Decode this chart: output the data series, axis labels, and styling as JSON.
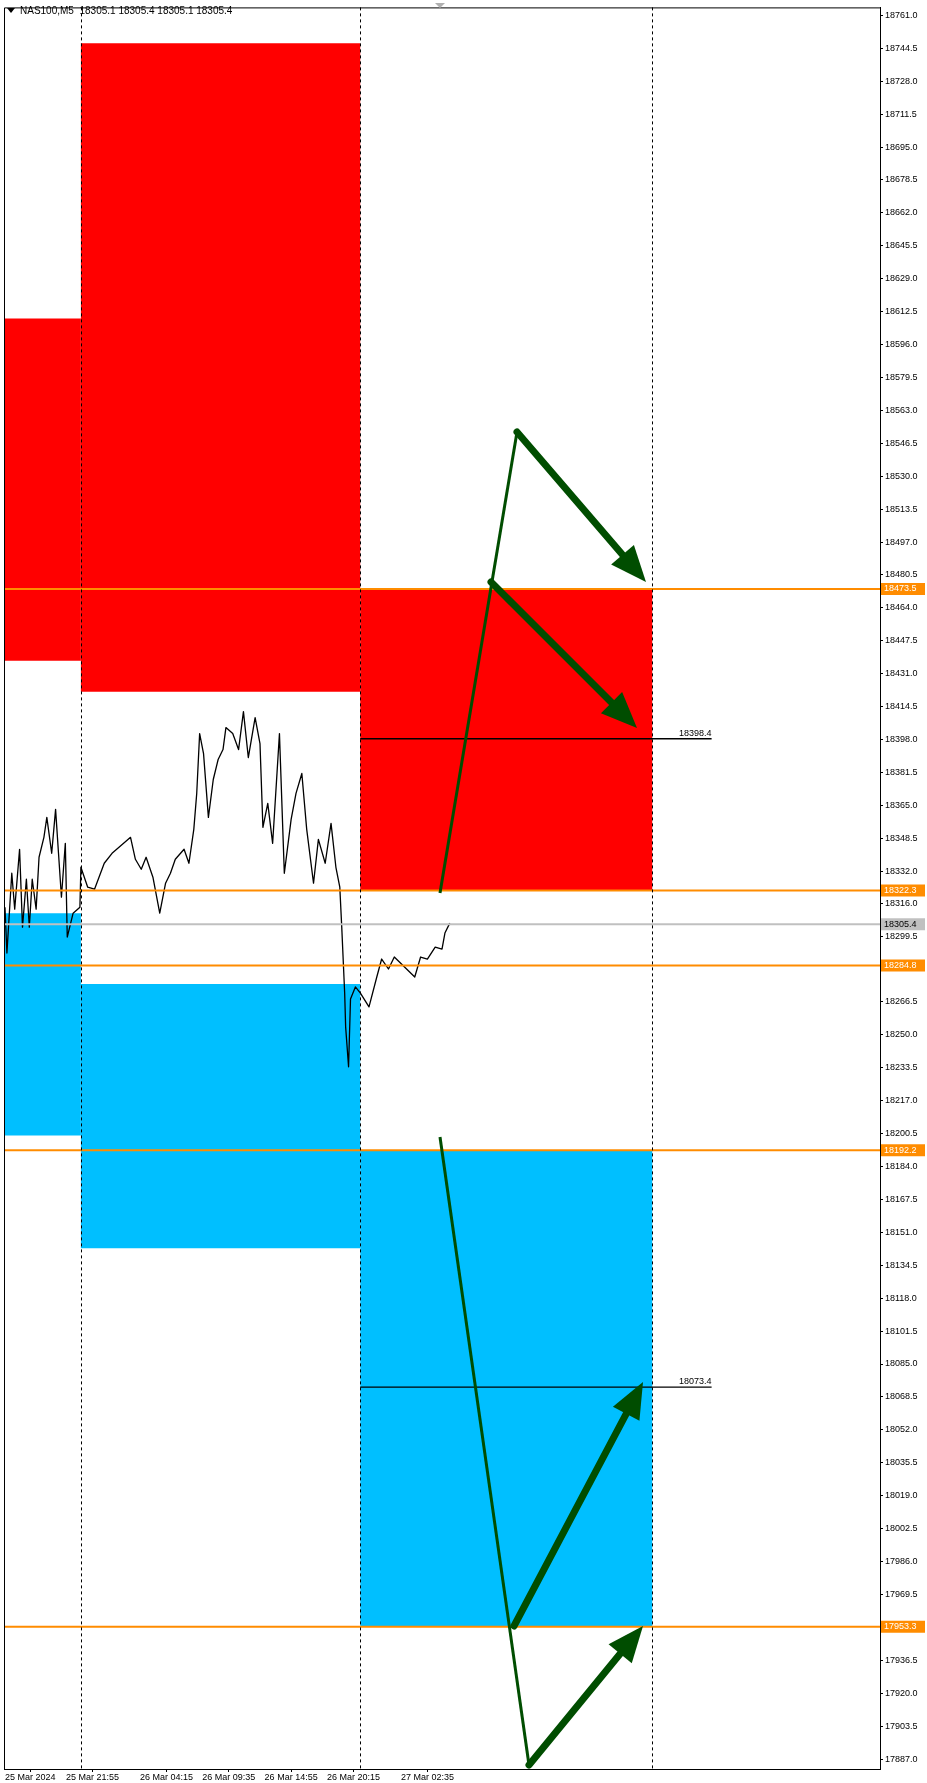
{
  "chart_data": {
    "type": "line",
    "title": "NAS100,M5  18305.1 18305.4 18305.1 18305.4",
    "xlim": [
      "2024-03-25T14:20",
      "2024-03-28T17:20"
    ],
    "ylim": [
      17882,
      18765
    ],
    "xticks": [
      {
        "value": "2024-03-25T16:35",
        "label": "25 Mar 2024"
      },
      {
        "value": "2024-03-25T21:55",
        "label": "25 Mar 21:55"
      },
      {
        "value": "2024-03-26T04:15",
        "label": "26 Mar 04:15"
      },
      {
        "value": "2024-03-26T09:35",
        "label": "26 Mar 09:35"
      },
      {
        "value": "2024-03-26T14:55",
        "label": "26 Mar 14:55"
      },
      {
        "value": "2024-03-26T20:15",
        "label": "26 Mar 20:15"
      },
      {
        "value": "2024-03-27T02:35",
        "label": "27 Mar 02:35"
      }
    ],
    "yticks": [
      {
        "value": 18761,
        "label": "18761.0"
      },
      18744.5,
      {
        "value": 18728,
        "label": "18728.0"
      },
      18711.5,
      {
        "value": 18695,
        "label": "18695.0"
      },
      18678.5,
      {
        "value": 18662,
        "label": "18662.0"
      },
      18645.5,
      {
        "value": 18629,
        "label": "18629.0"
      },
      18612.5,
      {
        "value": 18596,
        "label": "18596.0"
      },
      18579.5,
      {
        "value": 18563,
        "label": "18563.0"
      },
      18546.5,
      {
        "value": 18530,
        "label": "18530.0"
      },
      18513.5,
      {
        "value": 18497,
        "label": "18497.0"
      },
      18480.5,
      {
        "value": 18464,
        "label": "18464.0"
      },
      18447.5,
      {
        "value": 18431,
        "label": "18431.0"
      },
      18414.5,
      {
        "value": 18398,
        "label": "18398.0"
      },
      18381.5,
      {
        "value": 18365,
        "label": "18365.0"
      },
      18348.5,
      {
        "value": 18332,
        "label": "18332.0"
      },
      {
        "value": 18316,
        "label": "18316.0"
      },
      18299.5,
      18266.5,
      {
        "value": 18250,
        "label": "18250.0"
      },
      18233.5,
      {
        "value": 18217,
        "label": "18217.0"
      },
      18200.5,
      {
        "value": 18184,
        "label": "18184.0"
      },
      18167.5,
      {
        "value": 18151,
        "label": "18151.0"
      },
      18134.5,
      {
        "value": 18118,
        "label": "18118.0"
      },
      18101.5,
      {
        "value": 18085,
        "label": "18085.0"
      },
      18068.5,
      {
        "value": 18052,
        "label": "18052.0"
      },
      18035.5,
      {
        "value": 18019,
        "label": "18019.0"
      },
      18002.5,
      {
        "value": 17986,
        "label": "17986.0"
      },
      17969.5,
      17936.5,
      {
        "value": 17920,
        "label": "17920.0"
      },
      17903.5,
      {
        "value": 17887,
        "label": "17887.0"
      }
    ],
    "series": [
      {
        "type": "area",
        "color": "#ff0000",
        "x": [
          "2024-03-25T14:25",
          "2024-03-25T20:55"
        ],
        "values": [
          null,
          null
        ],
        "upper": [
          18609,
          18609
        ],
        "lower": [
          18437.5,
          18437.5
        ]
      },
      {
        "type": "area",
        "color": "#ff0000",
        "x": [
          "2024-03-25T20:55",
          "2024-03-26T20:50"
        ],
        "values": [
          null,
          null
        ],
        "upper": [
          18747,
          18747
        ],
        "lower": [
          18422,
          18422
        ]
      },
      {
        "type": "area",
        "color": "#ff0000",
        "x": [
          "2024-03-26T20:50",
          "2024-03-27T21:50"
        ],
        "values": [
          null,
          null
        ],
        "upper": [
          18473.5,
          18473.5
        ],
        "lower": [
          18322.3,
          18322.3
        ]
      },
      {
        "type": "area",
        "color": "#00bfff",
        "x": [
          "2024-03-25T14:25",
          "2024-03-25T20:55"
        ],
        "values": [
          null,
          null
        ],
        "upper": [
          18311,
          18311
        ],
        "lower": [
          18199.5,
          18199.5
        ]
      },
      {
        "type": "area",
        "color": "#00bfff",
        "x": [
          "2024-03-25T20:55",
          "2024-03-26T20:50"
        ],
        "values": [
          null,
          null
        ],
        "upper": [
          18275.5,
          18275.5
        ],
        "lower": [
          18143,
          18143
        ]
      },
      {
        "type": "area",
        "color": "#00bfff",
        "x": [
          "2024-03-26T20:50",
          "2024-03-27T21:50"
        ],
        "values": [
          null,
          null
        ],
        "upper": [
          18192.2,
          18192.2
        ],
        "lower": [
          17953.3,
          17953.3
        ]
      },
      {
        "color": "#000000",
        "x": [
          "2024-03-26T20:50",
          "2024-03-28T02:55"
        ],
        "values": [
          18398.4,
          18398.4
        ]
      },
      {
        "color": "#000000",
        "x": [
          "2024-03-26T20:50",
          "2024-03-28T02:55"
        ],
        "values": [
          18073.4,
          18073.4
        ]
      },
      {
        "color": "#000000",
        "x": [
          "2024-03-25T14:25",
          "2024-03-25T14:35",
          "2024-03-25T15:00",
          "2024-03-25T15:15",
          "2024-03-25T15:40",
          "2024-03-25T15:55",
          "2024-03-25T16:15",
          "2024-03-25T16:30",
          "2024-03-25T16:45",
          "2024-03-25T17:05",
          "2024-03-25T17:20",
          "2024-03-25T17:45",
          "2024-03-25T18:00",
          "2024-03-25T18:25",
          "2024-03-25T18:45",
          "2024-03-25T19:00",
          "2024-03-25T19:15",
          "2024-03-25T19:35",
          "2024-03-25T19:45",
          "2024-03-25T20:15",
          "2024-03-25T20:50",
          "2024-03-25T20:55",
          "2024-03-25T21:30",
          "2024-03-25T22:05",
          "2024-03-25T22:55",
          "2024-03-25T23:35",
          "2024-03-26T01:10",
          "2024-03-26T01:35",
          "2024-03-26T02:05",
          "2024-03-26T02:30",
          "2024-03-26T03:05",
          "2024-03-26T03:40",
          "2024-03-26T04:10",
          "2024-03-26T04:35",
          "2024-03-26T05:00",
          "2024-03-26T05:45",
          "2024-03-26T06:10",
          "2024-03-26T06:35",
          "2024-03-26T06:50",
          "2024-03-26T07:05",
          "2024-03-26T07:25",
          "2024-03-26T07:50",
          "2024-03-26T08:15",
          "2024-03-26T08:40",
          "2024-03-26T09:05",
          "2024-03-26T09:20",
          "2024-03-26T09:55",
          "2024-03-26T10:25",
          "2024-03-26T10:50",
          "2024-03-26T11:15",
          "2024-03-26T11:50",
          "2024-03-26T12:15",
          "2024-03-26T12:30",
          "2024-03-26T12:55",
          "2024-03-26T13:20",
          "2024-03-26T13:55",
          "2024-03-26T14:20",
          "2024-03-26T14:55",
          "2024-03-26T15:20",
          "2024-03-26T15:50",
          "2024-03-26T16:15",
          "2024-03-26T16:50",
          "2024-03-26T17:15",
          "2024-03-26T17:50",
          "2024-03-26T18:20",
          "2024-03-26T18:45",
          "2024-03-26T19:05",
          "2024-03-26T19:15",
          "2024-03-26T19:30",
          "2024-03-26T19:35",
          "2024-03-26T19:50",
          "2024-03-26T20:00",
          "2024-03-26T20:25",
          "2024-03-26T20:50",
          "2024-03-26T21:35",
          "2024-03-26T22:15",
          "2024-03-26T22:40",
          "2024-03-26T23:15",
          "2024-03-26T23:45",
          "2024-03-27T01:30",
          "2024-03-27T02:00",
          "2024-03-27T02:35",
          "2024-03-27T03:15",
          "2024-03-27T03:50",
          "2024-03-27T04:05",
          "2024-03-27T04:30"
        ],
        "values": [
          18314,
          18291,
          18331,
          18313,
          18343,
          18304,
          18328,
          18304,
          18328,
          18313,
          18339,
          18349,
          18359,
          18341,
          18363,
          18341,
          18319,
          18346,
          18299,
          18311,
          18314,
          18334,
          18324,
          18323,
          18336,
          18341,
          18349,
          18338,
          18333,
          18339,
          18329,
          18311,
          18326,
          18331,
          18338,
          18343,
          18336,
          18353,
          18371,
          18401,
          18391,
          18359,
          18378,
          18388,
          18393,
          18404,
          18401,
          18393,
          18412,
          18389,
          18409,
          18396,
          18354,
          18366,
          18346,
          18401,
          18331,
          18358,
          18371,
          18381,
          18353,
          18326,
          18348,
          18336,
          18356,
          18334,
          18324,
          18304,
          18271,
          18254,
          18234,
          18268,
          18274,
          18271,
          18264,
          18279,
          18288,
          18283,
          18289,
          18279,
          18289,
          18288,
          18294,
          18293,
          18301,
          18306
        ]
      }
    ],
    "ref_lines": [
      {
        "axis": "y",
        "value": 18473.5,
        "label": "18473.5",
        "color": "#ff8c00"
      },
      {
        "axis": "y",
        "value": 18322.3,
        "label": "18322.3",
        "color": "#ff8c00"
      },
      {
        "axis": "y",
        "value": 18305.4,
        "label": "18305.4",
        "color": "#c0c0c0"
      },
      {
        "axis": "y",
        "value": 18284.8,
        "label": "18284.8",
        "color": "#ff8c00"
      },
      {
        "axis": "y",
        "value": 18192.2,
        "label": "18192.2",
        "color": "#ff8c00"
      },
      {
        "axis": "y",
        "value": 17953.3,
        "label": "17953.3",
        "color": "#ff8c00"
      },
      {
        "axis": "x",
        "value": "2024-03-25T20:55",
        "color": "#000000",
        "line_style": "dashed"
      },
      {
        "axis": "x",
        "value": "2024-03-26T20:50",
        "color": "#000000",
        "line_style": "dashed"
      },
      {
        "axis": "x",
        "value": "2024-03-27T21:50",
        "color": "#000000",
        "line_style": "dashed"
      }
    ],
    "annotations": [
      {
        "text": "18398.4",
        "x": "2024-03-28T02:55",
        "y": 18398.4
      },
      {
        "text": "18073.4",
        "x": "2024-03-28T02:55",
        "y": 18073.4
      }
    ],
    "grid": false,
    "legend": false
  }
}
